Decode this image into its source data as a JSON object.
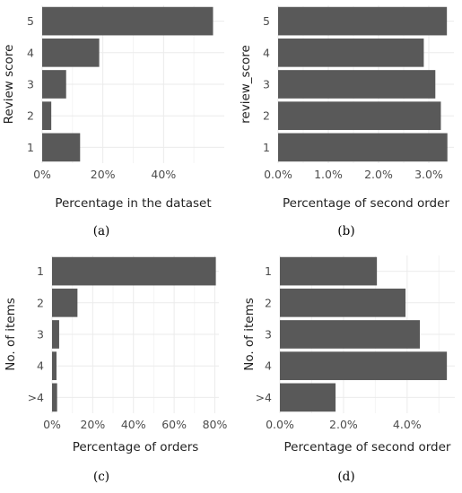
{
  "chart_data": [
    {
      "id": "a",
      "type": "bar",
      "orientation": "horizontal",
      "caption": "(a)",
      "ylabel": "Review score",
      "xlabel": "Percentage in the dataset",
      "categories": [
        "1",
        "2",
        "3",
        "4",
        "5"
      ],
      "values": [
        12.5,
        3.0,
        7.9,
        18.8,
        56.3
      ],
      "xlim": [
        0,
        60
      ],
      "xticks": [
        0,
        20,
        40
      ],
      "xtick_labels": [
        "0%",
        "20%",
        "40%"
      ],
      "grid": true
    },
    {
      "id": "b",
      "type": "bar",
      "orientation": "horizontal",
      "caption": "(b)",
      "ylabel": "review_score",
      "xlabel": "Percentage of second order",
      "categories": [
        "1",
        "2",
        "3",
        "4",
        "5"
      ],
      "values": [
        3.37,
        3.24,
        3.13,
        2.9,
        3.36
      ],
      "xlim": [
        0,
        3.5
      ],
      "xticks": [
        0,
        1,
        2,
        3
      ],
      "xtick_labels": [
        "0.0%",
        "1.0%",
        "2.0%",
        "3.0%"
      ],
      "grid": true
    },
    {
      "id": "c",
      "type": "bar",
      "orientation": "horizontal",
      "caption": "(c)",
      "ylabel": "No. of items",
      "xlabel": "Percentage of orders",
      "categories": [
        ">4",
        "4",
        "3",
        "2",
        "1"
      ],
      "values": [
        2.5,
        2.2,
        3.5,
        12.5,
        80.5
      ],
      "xlim": [
        0,
        82
      ],
      "xticks": [
        0,
        20,
        40,
        60,
        80
      ],
      "xtick_labels": [
        "0%",
        "20%",
        "40%",
        "60%",
        "80%"
      ],
      "grid": true
    },
    {
      "id": "d",
      "type": "bar",
      "orientation": "horizontal",
      "caption": "(d)",
      "ylabel": "No. of items",
      "xlabel": "Percentage of second order",
      "categories": [
        ">4",
        "4",
        "3",
        "2",
        "1"
      ],
      "values": [
        1.75,
        5.25,
        4.4,
        3.95,
        3.05
      ],
      "xlim": [
        0,
        5.5
      ],
      "xticks": [
        0,
        2,
        4
      ],
      "xtick_labels": [
        "0.0%",
        "2.0%",
        "4.0%"
      ],
      "grid": true
    }
  ]
}
